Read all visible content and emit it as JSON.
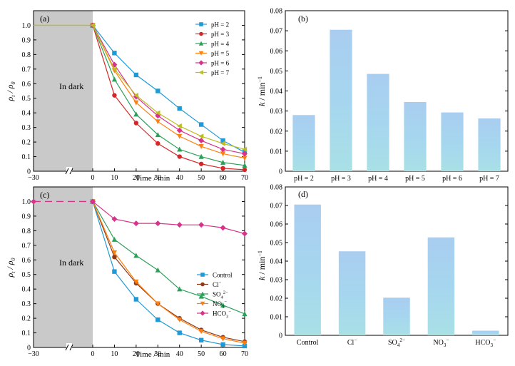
{
  "chart_data": [
    {
      "panel": "(a)",
      "type": "line",
      "xlabel": "Time / min",
      "ylabel": "ρt / ρ0",
      "xlim": [
        -30,
        70
      ],
      "ylim": [
        0,
        1.1
      ],
      "xticks": [
        "−30",
        "0",
        "10",
        "20",
        "30",
        "40",
        "50",
        "60",
        "70"
      ],
      "yticks": [
        "0",
        "0.1",
        "0.2",
        "0.3",
        "0.4",
        "0.5",
        "0.6",
        "0.7",
        "0.8",
        "0.9",
        "1.0"
      ],
      "annotation": "In dark",
      "dark_region": [
        -30,
        0
      ],
      "legend_position": "top-right",
      "x": [
        0,
        10,
        20,
        30,
        40,
        50,
        60,
        70
      ],
      "series": [
        {
          "name": "pH = 2",
          "color": "#1f9ad6",
          "marker": "square",
          "values": [
            1.0,
            0.81,
            0.66,
            0.55,
            0.43,
            0.32,
            0.21,
            0.13
          ]
        },
        {
          "name": "pH = 3",
          "color": "#d62728",
          "marker": "circle",
          "values": [
            1.0,
            0.52,
            0.33,
            0.19,
            0.1,
            0.05,
            0.02,
            0.01
          ]
        },
        {
          "name": "pH = 4",
          "color": "#2ca05a",
          "marker": "triangle-up",
          "values": [
            1.0,
            0.63,
            0.39,
            0.25,
            0.15,
            0.1,
            0.06,
            0.04
          ]
        },
        {
          "name": "pH = 5",
          "color": "#ff7f0e",
          "marker": "triangle-down",
          "values": [
            1.0,
            0.69,
            0.47,
            0.34,
            0.24,
            0.17,
            0.12,
            0.09
          ]
        },
        {
          "name": "pH = 6",
          "color": "#d6338a",
          "marker": "diamond",
          "values": [
            1.0,
            0.73,
            0.51,
            0.38,
            0.28,
            0.21,
            0.15,
            0.12
          ]
        },
        {
          "name": "pH = 7",
          "color": "#bcbd22",
          "marker": "triangle-left",
          "values": [
            1.0,
            0.7,
            0.52,
            0.4,
            0.31,
            0.24,
            0.19,
            0.15
          ]
        }
      ]
    },
    {
      "panel": "(b)",
      "type": "bar",
      "ylabel": "k / min−1",
      "ylim": [
        0,
        0.08
      ],
      "yticks": [
        "0",
        "0.01",
        "0.02",
        "0.03",
        "0.04",
        "0.05",
        "0.06",
        "0.07",
        "0.08"
      ],
      "categories": [
        "pH = 2",
        "pH = 3",
        "pH = 4",
        "pH = 5",
        "pH = 6",
        "pH = 7"
      ],
      "values": [
        0.028,
        0.0705,
        0.0485,
        0.0345,
        0.0293,
        0.0263
      ]
    },
    {
      "panel": "(c)",
      "type": "line",
      "xlabel": "Time / min",
      "ylabel": "ρt / ρ0",
      "xlim": [
        -30,
        70
      ],
      "ylim": [
        0,
        1.1
      ],
      "xticks": [
        "−30",
        "0",
        "10",
        "20",
        "30",
        "40",
        "50",
        "60",
        "70"
      ],
      "yticks": [
        "0",
        "0.1",
        "0.2",
        "0.3",
        "0.4",
        "0.5",
        "0.6",
        "0.7",
        "0.8",
        "0.9",
        "1.0"
      ],
      "annotation": "In dark",
      "dark_region": [
        -30,
        0
      ],
      "legend_position": "lower-middle",
      "x": [
        0,
        10,
        20,
        30,
        40,
        50,
        60,
        70
      ],
      "series": [
        {
          "name": "Control",
          "color": "#1f9ad6",
          "marker": "square",
          "values": [
            1.0,
            0.52,
            0.33,
            0.19,
            0.1,
            0.05,
            0.02,
            0.01
          ]
        },
        {
          "name": "Cl−",
          "color": "#8b3a1a",
          "marker": "circle",
          "values": [
            1.0,
            0.62,
            0.44,
            0.3,
            0.2,
            0.12,
            0.07,
            0.04
          ]
        },
        {
          "name": "SO42−",
          "color": "#2ca05a",
          "marker": "triangle-up",
          "values": [
            1.0,
            0.74,
            0.63,
            0.53,
            0.4,
            0.35,
            0.29,
            0.23
          ]
        },
        {
          "name": "NO3−",
          "color": "#ff7f0e",
          "marker": "triangle-down",
          "values": [
            1.0,
            0.65,
            0.45,
            0.3,
            0.19,
            0.11,
            0.06,
            0.03
          ]
        },
        {
          "name": "HCO3−",
          "color": "#d6338a",
          "marker": "diamond",
          "values": [
            1.0,
            0.88,
            0.85,
            0.85,
            0.84,
            0.84,
            0.82,
            0.78
          ]
        }
      ],
      "pre_dark_series": "HCO3−"
    },
    {
      "panel": "(d)",
      "type": "bar",
      "ylabel": "k / min−1",
      "ylim": [
        0,
        0.08
      ],
      "yticks": [
        "0",
        "0.01",
        "0.02",
        "0.03",
        "0.04",
        "0.05",
        "0.06",
        "0.07",
        "0.08"
      ],
      "categories": [
        "Control",
        "Cl−",
        "SO42−",
        "NO3−",
        "HCO3−"
      ],
      "values": [
        0.0705,
        0.0453,
        0.0203,
        0.0528,
        0.0025
      ]
    }
  ]
}
